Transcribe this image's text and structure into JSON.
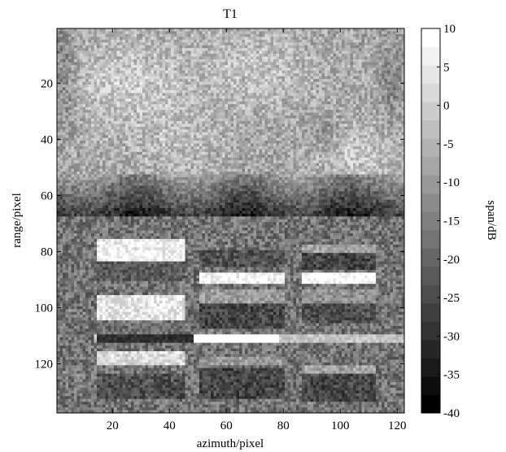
{
  "chart_data": {
    "type": "heatmap",
    "title": "T1",
    "xlabel": "azimuth/pixel",
    "ylabel": "range/pixel",
    "xlim": [
      1,
      122
    ],
    "ylim": [
      1,
      137
    ],
    "x_ticks": [
      20,
      40,
      60,
      80,
      100,
      120
    ],
    "y_ticks": [
      20,
      40,
      60,
      80,
      100,
      120
    ],
    "colorbar": {
      "label": "span/dB",
      "min": -40,
      "max": 10,
      "ticks": [
        10,
        5,
        0,
        -5,
        -10,
        -15,
        -20,
        -25,
        -30,
        -35,
        -40
      ],
      "levels": 21,
      "colormap": "gray"
    },
    "description_of_features": {
      "background_region_rows": [
        1,
        65
      ],
      "dark_band_rows": [
        55,
        67
      ],
      "bright_stripe_row": 111,
      "bright_stripe_cols": [
        49,
        78
      ]
    },
    "grid": false
  }
}
